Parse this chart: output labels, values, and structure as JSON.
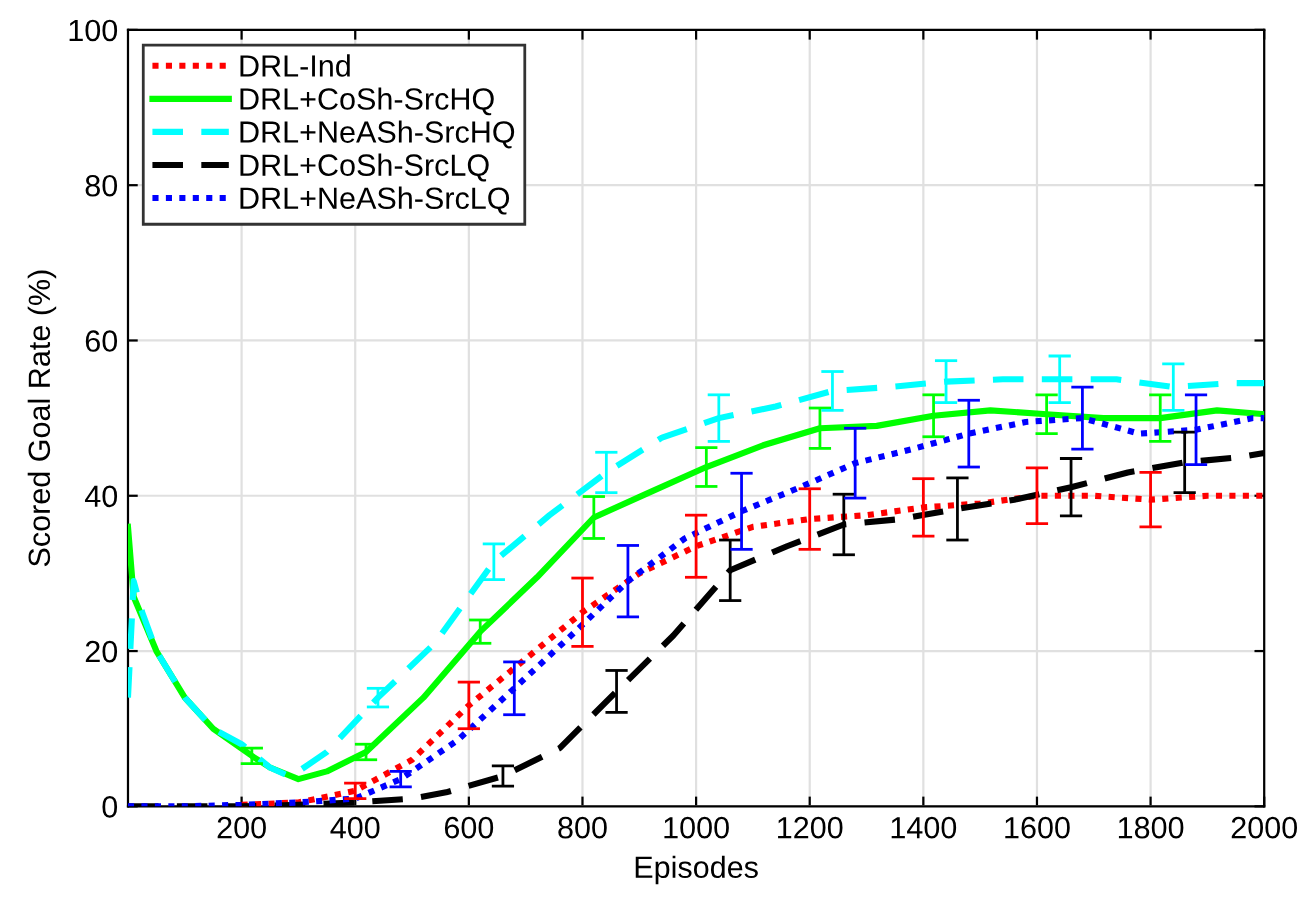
{
  "chart_data": {
    "type": "line",
    "xlabel": "Episodes",
    "ylabel": "Scored Goal Rate (%)",
    "xlim": [
      0,
      2000
    ],
    "ylim": [
      0,
      100
    ],
    "xticks": [
      200,
      400,
      600,
      800,
      1000,
      1200,
      1400,
      1600,
      1800,
      2000
    ],
    "yticks": [
      0,
      20,
      40,
      60,
      80,
      100
    ],
    "grid": true,
    "legend": "top left",
    "marker": "none",
    "series": [
      {
        "name": "DRL-Ind",
        "color": "#ff0000",
        "line_style": "dotted",
        "x": [
          200,
          300,
          400,
          500,
          600,
          700,
          800,
          900,
          1000,
          1100,
          1200,
          1300,
          1400,
          1500,
          1600,
          1700,
          1800,
          1900,
          2000
        ],
        "values": [
          0.2,
          0.5,
          2,
          6,
          13,
          19,
          25,
          30,
          33.5,
          36,
          37,
          37.5,
          38.5,
          39,
          40,
          40,
          39.5,
          40,
          40
        ],
        "errors": [
          null,
          null,
          1,
          null,
          3,
          null,
          4.4,
          null,
          4,
          null,
          3.9,
          null,
          3.7,
          null,
          3.6,
          null,
          3.5,
          null,
          null
        ]
      },
      {
        "name": "DRL+CoSh-SrcHQ",
        "color": "#00ff00",
        "line_style": "solid",
        "x": [
          0,
          10,
          50,
          100,
          150,
          218,
          250,
          300,
          350,
          419,
          520,
          620,
          720,
          820,
          920,
          1018,
          1118,
          1218,
          1318,
          1418,
          1518,
          1617,
          1717,
          1817,
          1917,
          2000
        ],
        "values": [
          36,
          27,
          20,
          14,
          10,
          6.5,
          5,
          3.5,
          4.5,
          7,
          14,
          22.5,
          29.5,
          37.2,
          40.5,
          43.7,
          46.5,
          48.7,
          49,
          50.3,
          51,
          50.5,
          50,
          50,
          51,
          50.5
        ],
        "errors": [
          null,
          null,
          null,
          null,
          null,
          1,
          null,
          null,
          null,
          1,
          null,
          1.5,
          null,
          2.7,
          null,
          2.5,
          null,
          2.6,
          null,
          2.7,
          null,
          2.5,
          null,
          3,
          null,
          null
        ]
      },
      {
        "name": "DRL+NeASh-SrcHQ",
        "color": "#00ffff",
        "line_style": "dashed",
        "x": [
          0,
          10,
          25,
          50,
          100,
          150,
          200,
          250,
          280,
          300,
          350,
          440,
          540,
          644,
          742,
          842,
          940,
          1040,
          1140,
          1240,
          1340,
          1440,
          1540,
          1640,
          1740,
          1840,
          1940,
          2000
        ],
        "values": [
          14,
          29,
          25,
          20,
          14,
          10,
          8,
          5,
          4,
          4.5,
          7,
          14,
          21,
          31.5,
          37.5,
          43,
          47.5,
          50,
          51.5,
          53.5,
          54,
          54.7,
          55,
          55,
          55,
          54,
          54.5,
          54.5
        ],
        "errors": [
          null,
          null,
          null,
          null,
          null,
          null,
          null,
          null,
          null,
          null,
          null,
          1.2,
          null,
          2.3,
          null,
          2.6,
          null,
          3,
          null,
          2.5,
          null,
          2.7,
          null,
          3,
          null,
          3,
          null,
          null
        ]
      },
      {
        "name": "DRL+CoSh-SrcLQ",
        "color": "#000000",
        "line_style": "dashed",
        "x": [
          0,
          200,
          300,
          400,
          500,
          560,
          660,
          760,
          860,
          960,
          1060,
          1160,
          1260,
          1360,
          1460,
          1560,
          1660,
          1760,
          1860,
          1960,
          2000
        ],
        "values": [
          0,
          0,
          0.2,
          0.5,
          1,
          1.8,
          3.9,
          7.5,
          14.8,
          22,
          30.4,
          33.5,
          36.3,
          37,
          38.3,
          39.5,
          41.1,
          43,
          44.3,
          45,
          45.5
        ],
        "errors": [
          null,
          null,
          null,
          null,
          null,
          null,
          1.3,
          null,
          2.7,
          null,
          3.9,
          null,
          3.9,
          null,
          4,
          null,
          3.7,
          null,
          3.9,
          null,
          null
        ]
      },
      {
        "name": "DRL+NeASh-SrcLQ",
        "color": "#0000ff",
        "line_style": "dotted",
        "x": [
          0,
          100,
          200,
          300,
          400,
          480,
          580,
          680,
          780,
          880,
          980,
          1080,
          1180,
          1280,
          1380,
          1480,
          1580,
          1680,
          1780,
          1880,
          1980,
          2000
        ],
        "values": [
          0,
          0,
          0.2,
          0.5,
          1,
          3.5,
          8.5,
          15.2,
          22,
          29,
          34.5,
          38,
          41,
          44.2,
          46,
          48,
          49.5,
          50,
          48,
          48.5,
          50,
          50
        ],
        "errors": [
          null,
          null,
          null,
          null,
          null,
          1,
          null,
          3.4,
          null,
          4.6,
          null,
          4.9,
          null,
          4.5,
          null,
          4.3,
          null,
          4,
          null,
          4.5,
          null,
          null
        ]
      }
    ]
  }
}
